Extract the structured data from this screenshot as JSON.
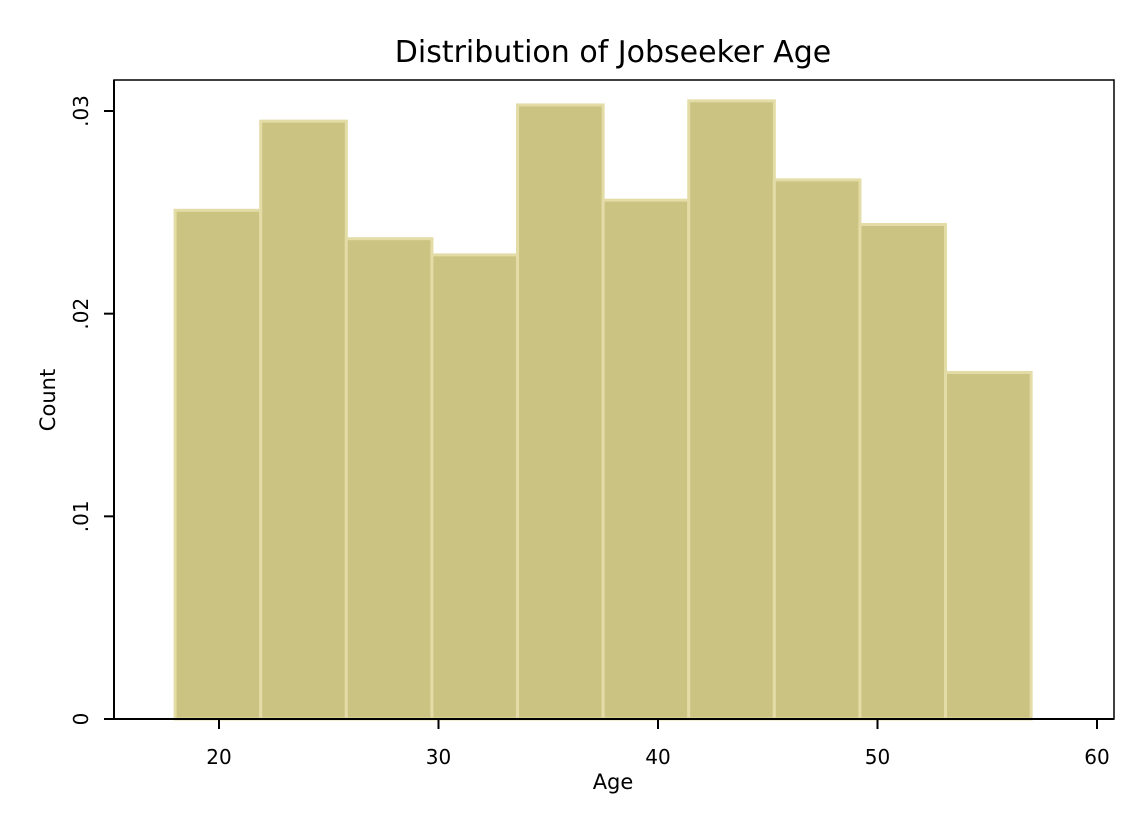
{
  "chart_data": {
    "type": "bar",
    "title": "Distribution of Jobseeker Age",
    "xlabel": "Age",
    "ylabel": "Count",
    "xlim": [
      15,
      61
    ],
    "ylim": [
      0,
      0.0315
    ],
    "xticks": [
      20,
      30,
      40,
      50,
      60
    ],
    "xtick_labels": [
      "20",
      "30",
      "40",
      "50",
      "60"
    ],
    "yticks": [
      0,
      0.01,
      0.02,
      0.03
    ],
    "ytick_labels": [
      "0",
      ".01",
      ".02",
      ".03"
    ],
    "bins": [
      {
        "start": 18.0,
        "end": 21.9,
        "value": 0.0251
      },
      {
        "start": 21.9,
        "end": 25.8,
        "value": 0.0295
      },
      {
        "start": 25.8,
        "end": 29.7,
        "value": 0.0237
      },
      {
        "start": 29.7,
        "end": 33.6,
        "value": 0.0229
      },
      {
        "start": 33.6,
        "end": 37.5,
        "value": 0.0303
      },
      {
        "start": 37.5,
        "end": 41.4,
        "value": 0.0256
      },
      {
        "start": 41.4,
        "end": 45.3,
        "value": 0.0305
      },
      {
        "start": 45.3,
        "end": 49.2,
        "value": 0.0266
      },
      {
        "start": 49.2,
        "end": 53.1,
        "value": 0.0244
      },
      {
        "start": 53.1,
        "end": 57.0,
        "value": 0.0171
      }
    ],
    "bar_color": "#cbc381",
    "bar_edge_color": "#e3dca6",
    "grid": false,
    "legend": "none"
  }
}
